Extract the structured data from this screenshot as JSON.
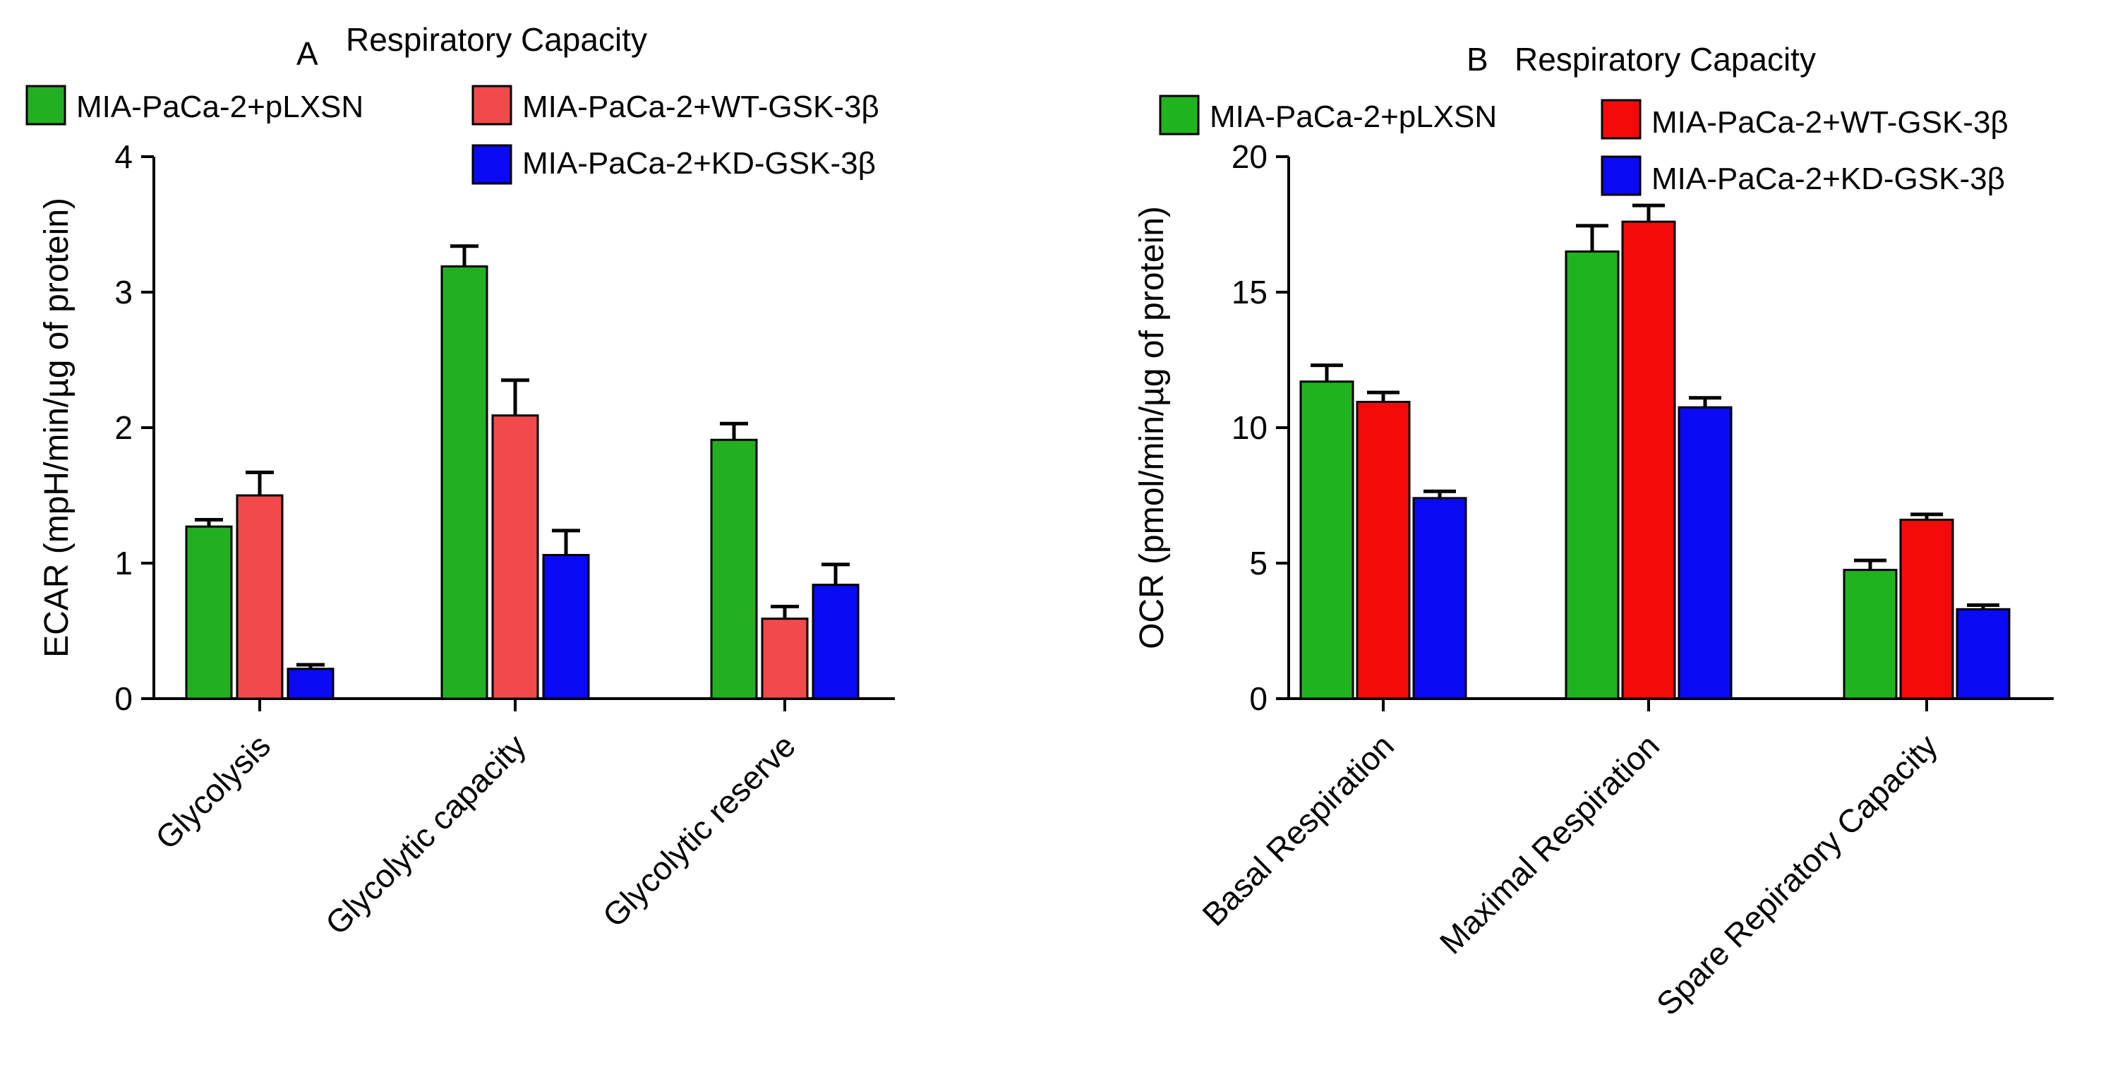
{
  "chart_data": [
    {
      "type": "bar",
      "panel": "A",
      "title": "Respiratory Capacity",
      "xlabel": "",
      "ylabel": "ECAR (mpH/min/µg of protein)",
      "ylim": [
        0,
        4
      ],
      "yticks": [
        0,
        1,
        2,
        3,
        4
      ],
      "categories": [
        "Glycolysis",
        "Glycolytic capacity",
        "Glycolytic reserve"
      ],
      "series": [
        {
          "name": "MIA-PaCa-2+pLXSN",
          "color": "#22b022",
          "values": [
            1.27,
            3.19,
            1.91
          ],
          "errors": [
            0.05,
            0.15,
            0.12
          ]
        },
        {
          "name": "MIA-PaCa-2+WT-GSK-3β",
          "color": "#f24a4a",
          "values": [
            1.5,
            2.09,
            0.59
          ],
          "errors": [
            0.17,
            0.26,
            0.09
          ]
        },
        {
          "name": "MIA-PaCa-2+KD-GSK-3β",
          "color": "#0a0af5",
          "values": [
            0.22,
            1.06,
            0.84
          ],
          "errors": [
            0.03,
            0.18,
            0.15
          ]
        }
      ],
      "legend": "top"
    },
    {
      "type": "bar",
      "panel": "B",
      "title": "Respiratory Capacity",
      "xlabel": "",
      "ylabel": "OCR (pmol/min/µg of protein)",
      "ylim": [
        0,
        20
      ],
      "yticks": [
        0,
        5,
        10,
        15,
        20
      ],
      "categories": [
        "Basal Respiration",
        "Maximal Respiration",
        "Spare Repiratory Capacity"
      ],
      "series": [
        {
          "name": "MIA-PaCa-2+pLXSN",
          "color": "#1fb41f",
          "values": [
            11.7,
            16.5,
            4.75
          ],
          "errors": [
            0.6,
            0.95,
            0.35
          ]
        },
        {
          "name": "MIA-PaCa-2+WT-GSK-3β",
          "color": "#f50a0a",
          "values": [
            10.95,
            17.6,
            6.6
          ],
          "errors": [
            0.35,
            0.6,
            0.2
          ]
        },
        {
          "name": "MIA-PaCa-2+KD-GSK-3β",
          "color": "#0a0af5",
          "values": [
            7.4,
            10.75,
            3.3
          ],
          "errors": [
            0.25,
            0.35,
            0.15
          ]
        }
      ],
      "legend": "top"
    }
  ]
}
